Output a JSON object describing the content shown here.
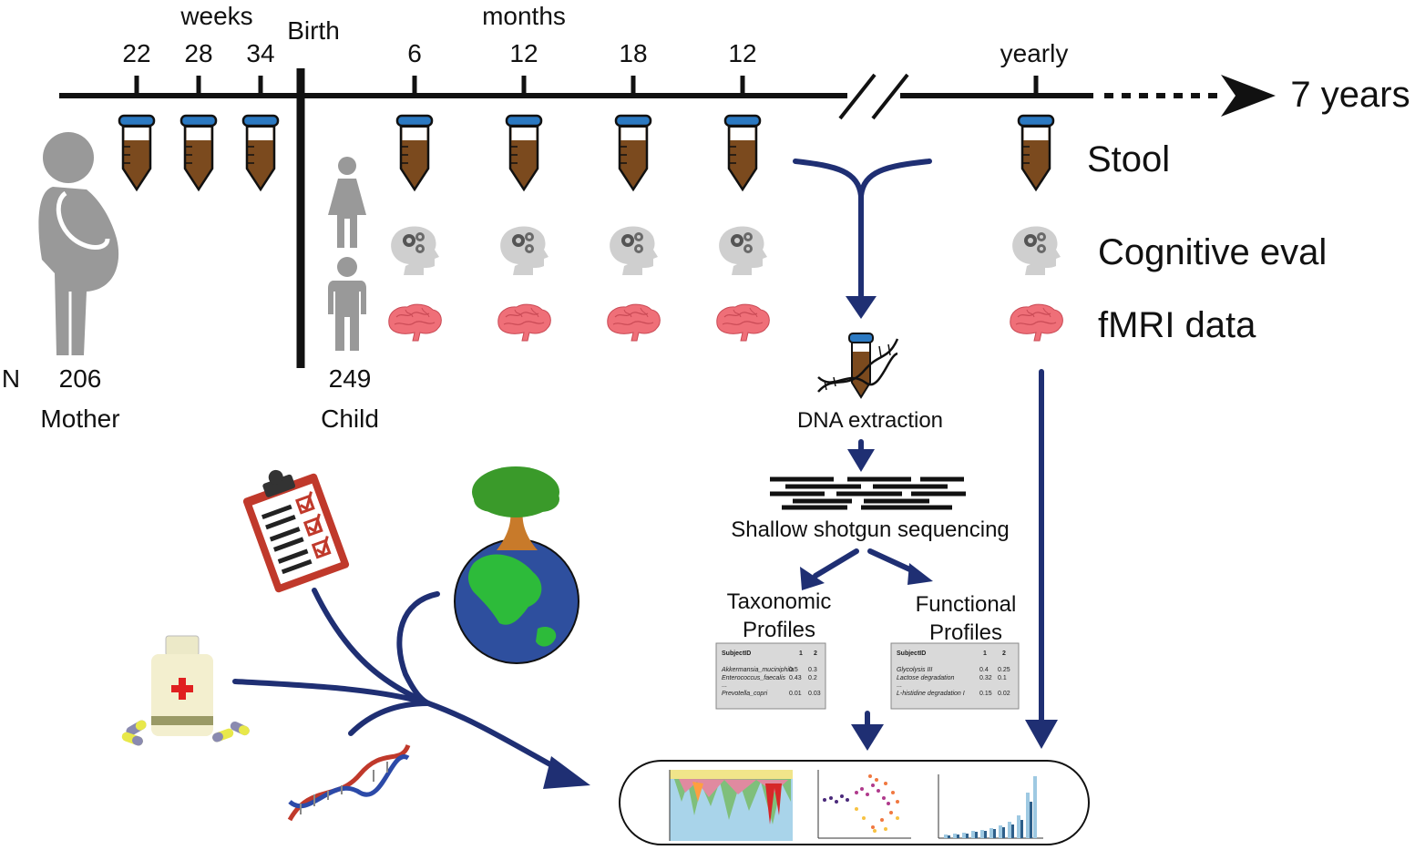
{
  "timeline": {
    "weeks_label": "weeks",
    "birth_label": "Birth",
    "months_label": "months",
    "yearly_label": "yearly",
    "end_label": "7 years",
    "prenatal_ticks": [
      "22",
      "28",
      "34"
    ],
    "postnatal_ticks": [
      "6",
      "12",
      "18",
      "12"
    ]
  },
  "rows": {
    "stool": "Stool",
    "cognitive": "Cognitive eval",
    "fmri": "fMRI data"
  },
  "cohort": {
    "n_label": "N",
    "mother_count": "206",
    "mother_label": "Mother",
    "child_count": "249",
    "child_label": "Child"
  },
  "pipeline": {
    "dna_extraction": "DNA extraction",
    "sequencing": "Shallow shotgun sequencing",
    "taxonomic_line1": "Taxonomic",
    "taxonomic_line2": "Profiles",
    "functional_line1": "Functional",
    "functional_line2": "Profiles"
  },
  "taxonomic_table": {
    "header": [
      "SubjectID",
      "1",
      "2"
    ],
    "rows": [
      [
        "Akkermansia_muciniphila",
        "0.5",
        "0.3"
      ],
      [
        "Enterococcus_faecalis",
        "0.43",
        "0.2"
      ],
      [
        "...",
        "",
        ""
      ],
      [
        "Prevotella_copri",
        "0.01",
        "0.03"
      ]
    ]
  },
  "functional_table": {
    "header": [
      "SubjectID",
      "1",
      "2"
    ],
    "rows": [
      [
        "Glycolysis III",
        "0.4",
        "0.25"
      ],
      [
        "Lactose degradation",
        "0.32",
        "0.1"
      ],
      [
        "...",
        "",
        ""
      ],
      [
        "L-histidine degradation I",
        "0.15",
        "0.02"
      ]
    ]
  },
  "colors": {
    "arrow": "#1f2f73",
    "stool": "#7b4a1e",
    "cap": "#2b79c2",
    "brain": "#ef6f78",
    "head": "#c9c9c9",
    "person": "#999999"
  }
}
